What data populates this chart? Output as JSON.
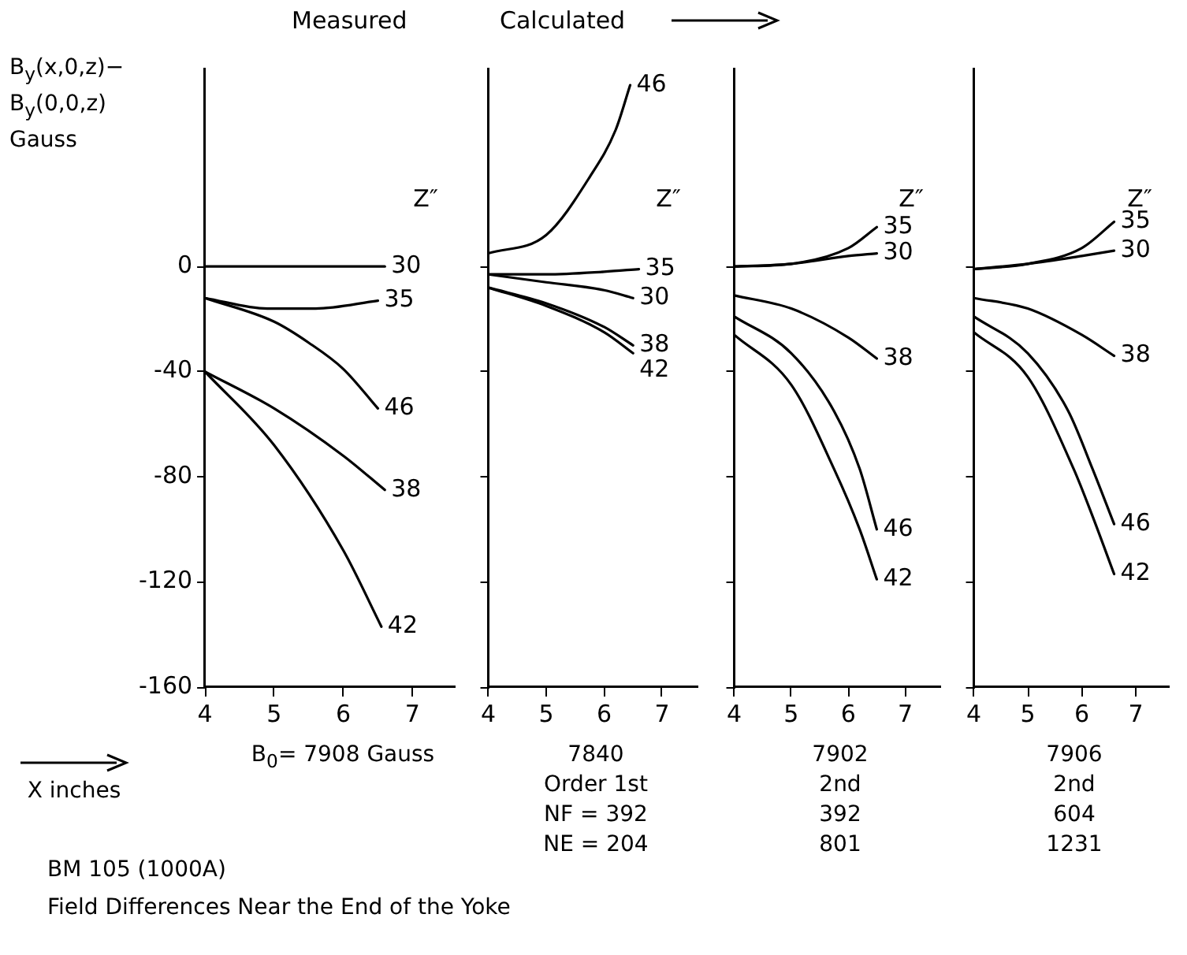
{
  "chart_data": [
    {
      "type": "line",
      "title": "Measured",
      "ylabel": "B$_{y}$(x,0,z)− B$_{y}$(0,0,z) Gauss",
      "xlabel": "X inches",
      "legend_title": "Z″",
      "xlim": [
        4,
        7.6
      ],
      "ylim": [
        -160,
        75
      ],
      "xticks": [
        4,
        5,
        6,
        7
      ],
      "yticks": [
        0,
        -40,
        -80,
        -120,
        -160
      ],
      "grid": false,
      "legend": false,
      "marker": "none",
      "line_style": "solid",
      "annotations": [
        "B$_{0}$= 7908 Gauss",
        "BM 105 (1000A)",
        "Field Differences Near the End of the Yoke"
      ],
      "series": [
        {
          "name": "30",
          "color": "#000000",
          "x": [
            4,
            6.6
          ],
          "values": [
            0,
            0
          ]
        },
        {
          "name": "35",
          "color": "#000000",
          "x": [
            4,
            4.9,
            5.6,
            6.5
          ],
          "values": [
            -12,
            -16,
            -16,
            -13
          ]
        },
        {
          "name": "46",
          "color": "#000000",
          "x": [
            4,
            5,
            5.5,
            6,
            6.5
          ],
          "values": [
            -12,
            -21,
            -29,
            -39,
            -54
          ]
        },
        {
          "name": "38",
          "color": "#000000",
          "x": [
            4,
            5,
            6,
            6.6
          ],
          "values": [
            -40,
            -54,
            -72,
            -85
          ]
        },
        {
          "name": "42",
          "color": "#000000",
          "x": [
            4,
            5,
            6,
            6.55
          ],
          "values": [
            -40,
            -68,
            -108,
            -137
          ]
        }
      ]
    },
    {
      "type": "line",
      "title": "Calculated",
      "legend_title": "Z″",
      "xlim": [
        4,
        7.6
      ],
      "ylim": [
        -160,
        75
      ],
      "xticks": [
        4,
        5,
        6,
        7
      ],
      "yticks": [
        0,
        -40,
        -80,
        -120,
        -160
      ],
      "tick_labels": "x",
      "grid": false,
      "legend": false,
      "marker": "none",
      "line_style": "solid",
      "annotations": [
        "7840",
        "Order 1st",
        "NF = 392",
        "NE = 204"
      ],
      "series": [
        {
          "name": "46",
          "color": "#000000",
          "x": [
            4,
            5,
            5.75,
            6.2,
            6.45
          ],
          "values": [
            5,
            12,
            34,
            52,
            69
          ]
        },
        {
          "name": "35",
          "color": "#000000",
          "x": [
            4,
            5,
            6,
            6.6
          ],
          "values": [
            -3,
            -3,
            -2,
            -1
          ]
        },
        {
          "name": "30",
          "color": "#000000",
          "x": [
            4,
            5,
            6,
            6.5
          ],
          "values": [
            -3,
            -6,
            -9,
            -12
          ]
        },
        {
          "name": "38",
          "color": "#000000",
          "x": [
            4,
            5,
            6,
            6.5
          ],
          "values": [
            -8,
            -14,
            -23,
            -30
          ]
        },
        {
          "name": "42",
          "color": "#000000",
          "x": [
            4,
            5,
            6,
            6.5
          ],
          "values": [
            -8,
            -15,
            -25,
            -33
          ]
        }
      ]
    },
    {
      "type": "line",
      "legend_title": "Z″",
      "xlim": [
        4,
        7.6
      ],
      "ylim": [
        -160,
        75
      ],
      "xticks": [
        4,
        5,
        6,
        7
      ],
      "yticks": [
        0,
        -40,
        -80,
        -120,
        -160
      ],
      "tick_labels": "x",
      "grid": false,
      "legend": false,
      "marker": "none",
      "line_style": "solid",
      "annotations": [
        "7902",
        "2nd",
        "392",
        "801"
      ],
      "series": [
        {
          "name": "35",
          "color": "#000000",
          "x": [
            4,
            5,
            6,
            6.5
          ],
          "values": [
            0,
            1,
            7,
            15
          ]
        },
        {
          "name": "30",
          "color": "#000000",
          "x": [
            4,
            5,
            6,
            6.5
          ],
          "values": [
            0,
            1,
            4,
            5
          ]
        },
        {
          "name": "38",
          "color": "#000000",
          "x": [
            4,
            5,
            6,
            6.5
          ],
          "values": [
            -11,
            -16,
            -27,
            -35
          ]
        },
        {
          "name": "46",
          "color": "#000000",
          "x": [
            4,
            5,
            5.75,
            6.2,
            6.5
          ],
          "values": [
            -19,
            -33,
            -55,
            -77,
            -100
          ]
        },
        {
          "name": "42",
          "color": "#000000",
          "x": [
            4,
            5,
            5.75,
            6.2,
            6.5
          ],
          "values": [
            -26,
            -45,
            -77,
            -100,
            -119
          ]
        }
      ]
    },
    {
      "type": "line",
      "legend_title": "Z″",
      "xlim": [
        4,
        7.6
      ],
      "ylim": [
        -160,
        75
      ],
      "xticks": [
        4,
        5,
        6,
        7
      ],
      "yticks": [
        0,
        -40,
        -80,
        -120,
        -160
      ],
      "tick_labels": "x",
      "grid": false,
      "legend": false,
      "marker": "none",
      "line_style": "solid",
      "annotations": [
        "7906",
        "2nd",
        "604",
        "1231"
      ],
      "series": [
        {
          "name": "35",
          "color": "#000000",
          "x": [
            4,
            5,
            6,
            6.6
          ],
          "values": [
            -1,
            1,
            7,
            17
          ]
        },
        {
          "name": "30",
          "color": "#000000",
          "x": [
            4,
            5,
            6,
            6.6
          ],
          "values": [
            -1,
            1,
            4,
            6
          ]
        },
        {
          "name": "38",
          "color": "#000000",
          "x": [
            4,
            5,
            6,
            6.6
          ],
          "values": [
            -12,
            -16,
            -26,
            -34
          ]
        },
        {
          "name": "46",
          "color": "#000000",
          "x": [
            4,
            5,
            5.75,
            6.2,
            6.6
          ],
          "values": [
            -19,
            -33,
            -55,
            -77,
            -98
          ]
        },
        {
          "name": "42",
          "color": "#000000",
          "x": [
            4,
            5,
            5.85,
            6.2,
            6.6
          ],
          "values": [
            -25,
            -42,
            -77,
            -95,
            -117
          ]
        }
      ]
    }
  ]
}
